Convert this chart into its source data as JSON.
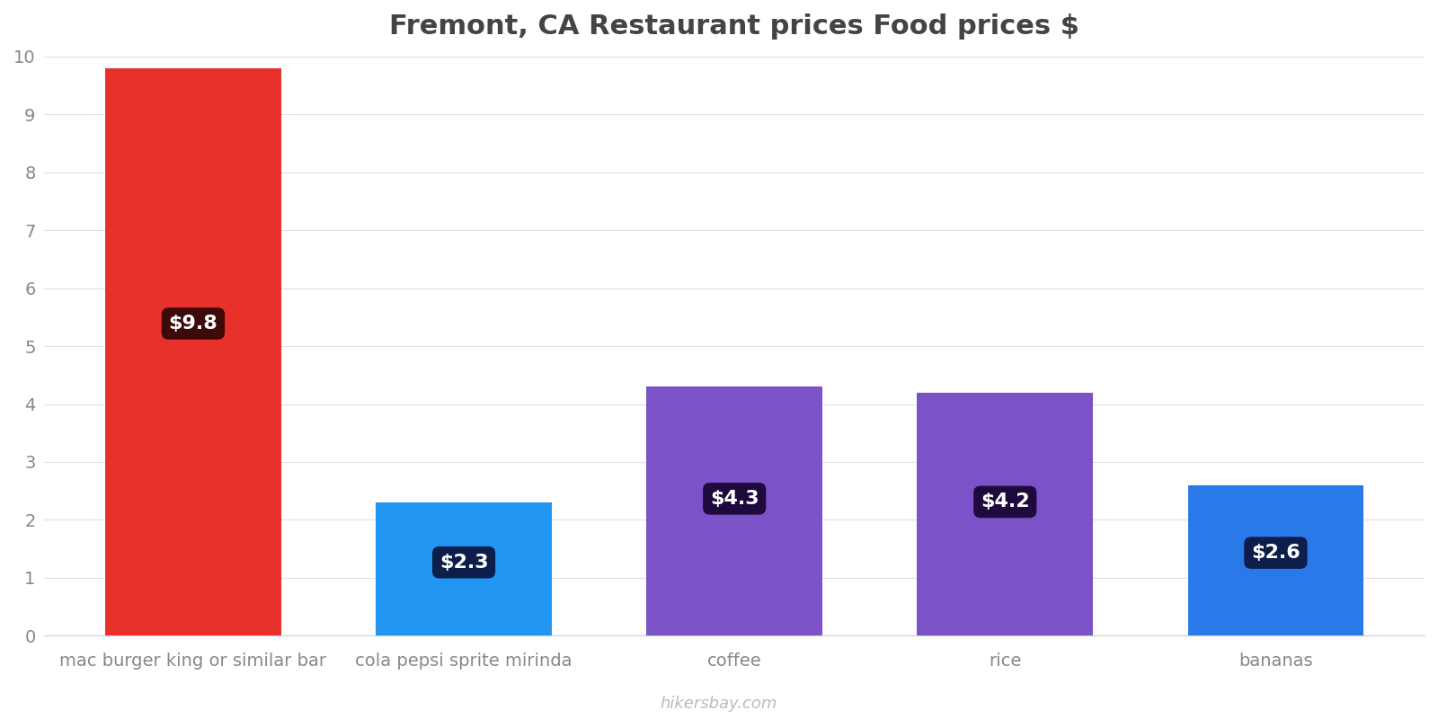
{
  "title": "Fremont, CA Restaurant prices Food prices $",
  "categories": [
    "mac burger king or similar bar",
    "cola pepsi sprite mirinda",
    "coffee",
    "rice",
    "bananas"
  ],
  "values": [
    9.8,
    2.3,
    4.3,
    4.2,
    2.6
  ],
  "bar_colors": [
    "#e8302a",
    "#2196f3",
    "#7b52c8",
    "#7b52c8",
    "#2979e8"
  ],
  "label_texts": [
    "$9.8",
    "$2.3",
    "$4.3",
    "$4.2",
    "$2.6"
  ],
  "label_bg_colors": [
    "#3d0a0a",
    "#0d1e4a",
    "#1e0a3d",
    "#1e0a3d",
    "#0d1e4a"
  ],
  "ylim": [
    0,
    10
  ],
  "yticks": [
    0,
    1,
    2,
    3,
    4,
    5,
    6,
    7,
    8,
    9,
    10
  ],
  "title_fontsize": 22,
  "tick_label_fontsize": 14,
  "watermark": "hikersbay.com",
  "background_color": "#ffffff",
  "label_fontsize": 16
}
